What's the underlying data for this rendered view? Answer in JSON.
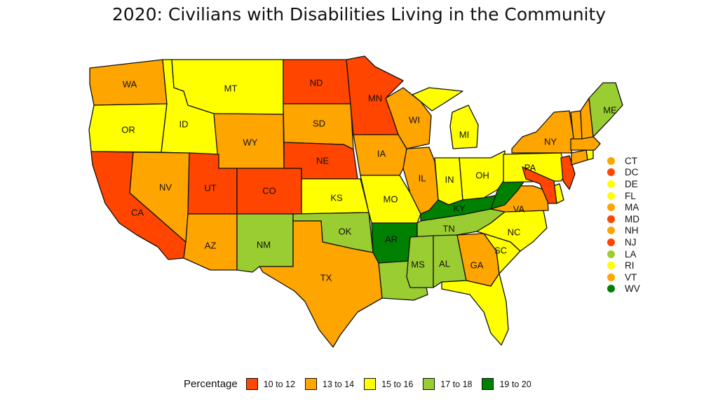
{
  "title": "2020: Civilians with Disabilities Living in the Community",
  "colors": {
    "10 to 12": "#ff4500",
    "13 to 14": "#ffa500",
    "15 to 16": "#ffff00",
    "17 to 18": "#9acd32",
    "19 to 20": "#008000"
  },
  "legend": {
    "title": "Percentage",
    "items": [
      {
        "label": "10 to 12",
        "color": "#ff4500"
      },
      {
        "label": "13 to 14",
        "color": "#ffa500"
      },
      {
        "label": "15 to 16",
        "color": "#ffff00"
      },
      {
        "label": "17 to 18",
        "color": "#9acd32"
      },
      {
        "label": "19 to 20",
        "color": "#008000"
      }
    ]
  },
  "side_legend": [
    {
      "state": "CT",
      "bin": "13 to 14"
    },
    {
      "state": "DC",
      "bin": "10 to 12"
    },
    {
      "state": "DE",
      "bin": "15 to 16"
    },
    {
      "state": "FL",
      "bin": "15 to 16"
    },
    {
      "state": "MA",
      "bin": "13 to 14"
    },
    {
      "state": "MD",
      "bin": "10 to 12"
    },
    {
      "state": "NH",
      "bin": "13 to 14"
    },
    {
      "state": "NJ",
      "bin": "10 to 12"
    },
    {
      "state": "LA",
      "bin": "17 to 18"
    },
    {
      "state": "RI",
      "bin": "15 to 16"
    },
    {
      "state": "VT",
      "bin": "13 to 14"
    },
    {
      "state": "WV",
      "bin": "19 to 20"
    }
  ],
  "states": [
    {
      "abbr": "WA",
      "bin": "13 to 14"
    },
    {
      "abbr": "OR",
      "bin": "15 to 16"
    },
    {
      "abbr": "CA",
      "bin": "10 to 12"
    },
    {
      "abbr": "ID",
      "bin": "15 to 16"
    },
    {
      "abbr": "NV",
      "bin": "13 to 14"
    },
    {
      "abbr": "MT",
      "bin": "15 to 16"
    },
    {
      "abbr": "WY",
      "bin": "13 to 14"
    },
    {
      "abbr": "UT",
      "bin": "10 to 12"
    },
    {
      "abbr": "AZ",
      "bin": "13 to 14"
    },
    {
      "abbr": "CO",
      "bin": "10 to 12"
    },
    {
      "abbr": "NM",
      "bin": "17 to 18"
    },
    {
      "abbr": "ND",
      "bin": "10 to 12"
    },
    {
      "abbr": "SD",
      "bin": "13 to 14"
    },
    {
      "abbr": "NE",
      "bin": "10 to 12"
    },
    {
      "abbr": "KS",
      "bin": "15 to 16"
    },
    {
      "abbr": "OK",
      "bin": "17 to 18"
    },
    {
      "abbr": "TX",
      "bin": "13 to 14"
    },
    {
      "abbr": "MN",
      "bin": "10 to 12"
    },
    {
      "abbr": "IA",
      "bin": "13 to 14"
    },
    {
      "abbr": "MO",
      "bin": "15 to 16"
    },
    {
      "abbr": "AR",
      "bin": "19 to 20"
    },
    {
      "abbr": "LA",
      "bin": "17 to 18"
    },
    {
      "abbr": "WI",
      "bin": "13 to 14"
    },
    {
      "abbr": "IL",
      "bin": "13 to 14"
    },
    {
      "abbr": "MI",
      "bin": "15 to 16"
    },
    {
      "abbr": "IN",
      "bin": "15 to 16"
    },
    {
      "abbr": "OH",
      "bin": "15 to 16"
    },
    {
      "abbr": "KY",
      "bin": "19 to 20"
    },
    {
      "abbr": "TN",
      "bin": "17 to 18"
    },
    {
      "abbr": "MS",
      "bin": "17 to 18"
    },
    {
      "abbr": "AL",
      "bin": "17 to 18"
    },
    {
      "abbr": "GA",
      "bin": "13 to 14"
    },
    {
      "abbr": "FL",
      "bin": "15 to 16"
    },
    {
      "abbr": "SC",
      "bin": "15 to 16"
    },
    {
      "abbr": "NC",
      "bin": "15 to 16"
    },
    {
      "abbr": "VA",
      "bin": "13 to 14"
    },
    {
      "abbr": "WV",
      "bin": "19 to 20"
    },
    {
      "abbr": "PA",
      "bin": "15 to 16"
    },
    {
      "abbr": "NY",
      "bin": "13 to 14"
    },
    {
      "abbr": "NJ",
      "bin": "10 to 12"
    },
    {
      "abbr": "DE",
      "bin": "15 to 16"
    },
    {
      "abbr": "MD",
      "bin": "10 to 12"
    },
    {
      "abbr": "CT",
      "bin": "13 to 14"
    },
    {
      "abbr": "RI",
      "bin": "15 to 16"
    },
    {
      "abbr": "MA",
      "bin": "13 to 14"
    },
    {
      "abbr": "VT",
      "bin": "13 to 14"
    },
    {
      "abbr": "NH",
      "bin": "13 to 14"
    },
    {
      "abbr": "ME",
      "bin": "17 to 18"
    }
  ]
}
